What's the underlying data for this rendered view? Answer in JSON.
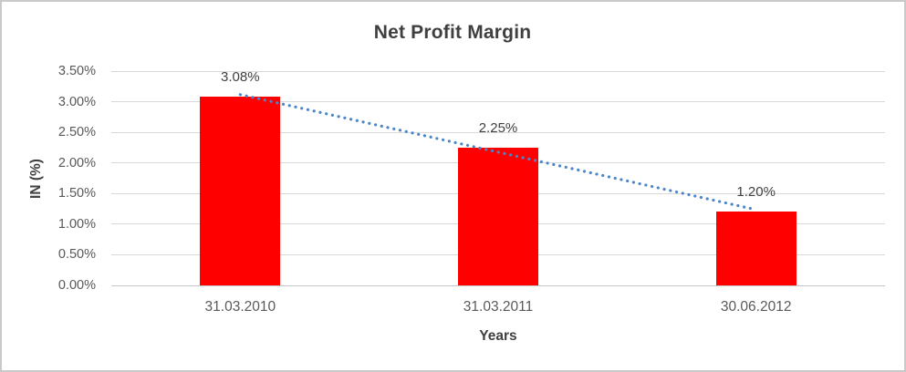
{
  "chart_data": {
    "type": "bar",
    "title": "Net Profit Margin",
    "xlabel": "Years",
    "ylabel": "IN (%)",
    "categories": [
      "31.03.2010",
      "31.03.2011",
      "30.06.2012"
    ],
    "values": [
      3.08,
      2.25,
      1.2
    ],
    "data_labels": [
      "3.08%",
      "2.25%",
      "1.20%"
    ],
    "ylim": [
      0,
      3.5
    ],
    "ytick_step": 0.5,
    "ytick_labels": [
      "0.00%",
      "0.50%",
      "1.00%",
      "1.50%",
      "2.00%",
      "2.50%",
      "3.00%",
      "3.50%"
    ],
    "grid": true,
    "legend": "none",
    "colors": {
      "bar": "#ff0000",
      "trendline": "#4a86c8",
      "gridline": "#d9d9d9",
      "axis_line": "#c6c6c6",
      "title_text": "#3f3f3f",
      "tick_text": "#595959",
      "label_text": "#404040"
    },
    "trendline": {
      "type": "linear",
      "style": "dotted"
    }
  }
}
